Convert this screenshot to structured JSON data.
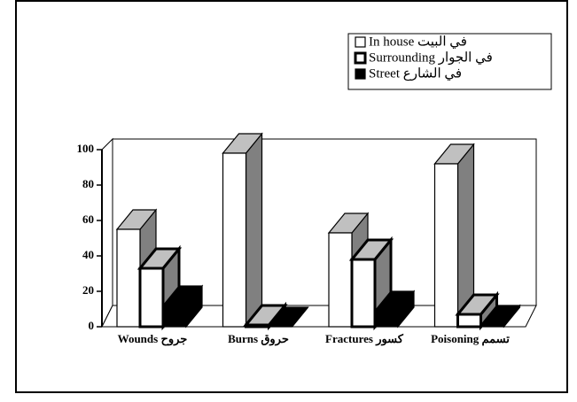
{
  "chart_data": {
    "type": "bar3d",
    "categories": [
      "Wounds جروح",
      "Burns حروق",
      "Fractures كسور",
      "Poisoning تسمم"
    ],
    "series": [
      {
        "name": "In house في البيت",
        "color": "#ffffff",
        "values": [
          55,
          98,
          53,
          92
        ]
      },
      {
        "name": "Surrounding في الجوار",
        "color": "#ffffff",
        "values": [
          33,
          1,
          38,
          7
        ]
      },
      {
        "name": "Street في الشارع",
        "color": "#000000",
        "values": [
          12,
          0,
          9,
          1
        ]
      }
    ],
    "ylim": [
      0,
      100
    ],
    "yticks": [
      0,
      20,
      40,
      60,
      80,
      100
    ],
    "legend": "top-right"
  }
}
